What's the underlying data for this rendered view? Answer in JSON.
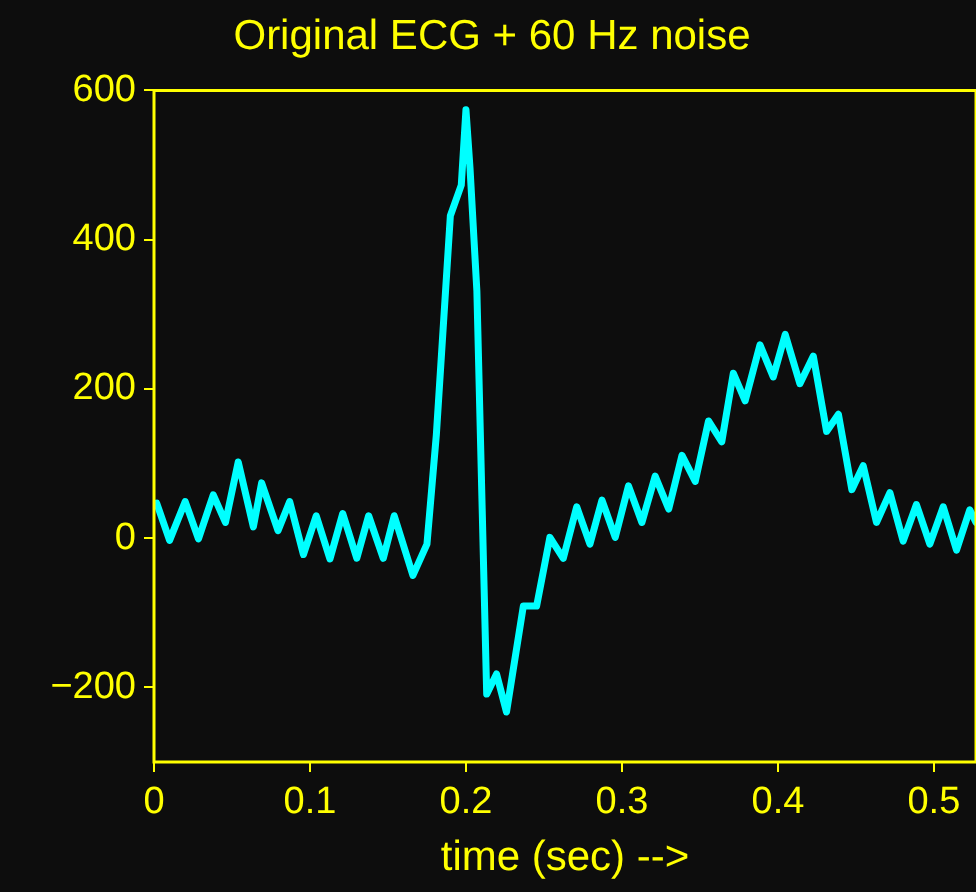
{
  "chart_data": {
    "type": "line",
    "title": "Original ECG + 60 Hz noise",
    "xlabel": "time (sec) -->",
    "xlim": [
      0,
      0.527
    ],
    "xticks": [
      0,
      0.1,
      0.2,
      0.3,
      0.4,
      0.5
    ],
    "ylim": [
      -300,
      600
    ],
    "yticks": [
      {
        "value": -200,
        "label": "−200"
      },
      0,
      200,
      400,
      600
    ],
    "grid": false,
    "legend": false,
    "marker": "none",
    "line_style": "solid",
    "x": [
      0.0017,
      0.01,
      0.02,
      0.0285,
      0.038,
      0.0458,
      0.054,
      0.0637,
      0.069,
      0.0795,
      0.087,
      0.0958,
      0.104,
      0.1128,
      0.121,
      0.13,
      0.1376,
      0.147,
      0.154,
      0.166,
      0.175,
      0.181,
      0.19,
      0.197,
      0.2,
      0.2026,
      0.207,
      0.2133,
      0.2196,
      0.226,
      0.2368,
      0.2453,
      0.2538,
      0.2624,
      0.271,
      0.2795,
      0.2872,
      0.2957,
      0.3042,
      0.3128,
      0.3213,
      0.33,
      0.3385,
      0.347,
      0.3555,
      0.364,
      0.3714,
      0.379,
      0.3885,
      0.397,
      0.4047,
      0.4141,
      0.4227,
      0.4312,
      0.4388,
      0.4474,
      0.4547,
      0.4632,
      0.4718,
      0.4803,
      0.4888,
      0.4974,
      0.506,
      0.5145,
      0.523,
      0.527
    ],
    "series": [
      {
        "color": "#00ffff",
        "values": [
          47,
          -3,
          49,
          -1,
          58,
          21,
          102,
          15,
          74,
          10,
          49,
          -22,
          30,
          -28,
          33,
          -27,
          30,
          -27,
          30,
          -50,
          -8,
          138,
          432,
          473,
          574,
          496,
          331,
          -209,
          -182,
          -233,
          -91,
          -91,
          1,
          -27,
          42,
          -8,
          51,
          1,
          70,
          21,
          83,
          39,
          111,
          76,
          157,
          129,
          221,
          184,
          259,
          216,
          273,
          207,
          244,
          143,
          166,
          65,
          97,
          21,
          61,
          -4,
          45,
          -8,
          42,
          -16,
          38,
          21
        ]
      }
    ]
  }
}
